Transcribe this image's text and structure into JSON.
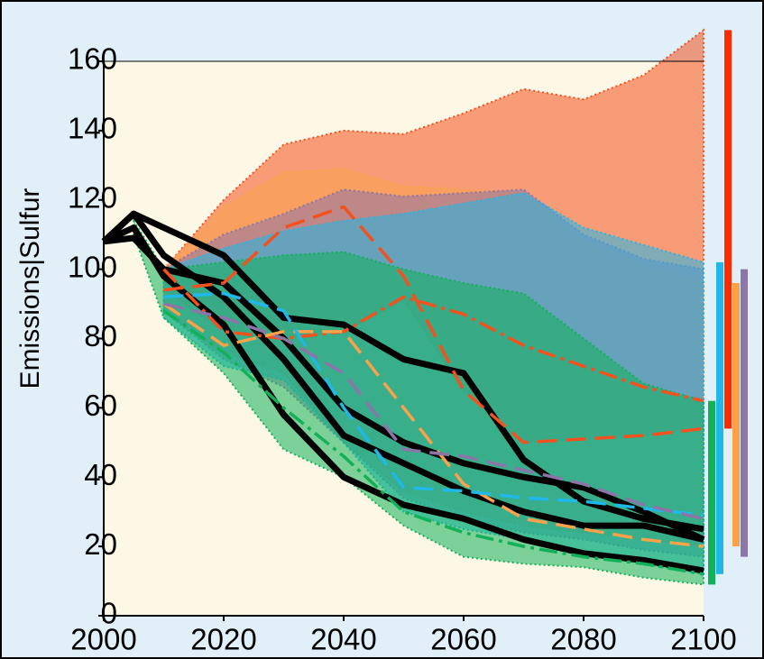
{
  "chart_data": {
    "type": "line",
    "ylabel": "Emissions|Sulfur",
    "x": [
      2000,
      2005,
      2010,
      2020,
      2030,
      2040,
      2050,
      2060,
      2070,
      2080,
      2090,
      2100
    ],
    "xlim": [
      2000,
      2100
    ],
    "xticks": [
      2000,
      2020,
      2040,
      2060,
      2080,
      2100
    ],
    "ylim": [
      0,
      160
    ],
    "yticks": [
      0,
      20,
      40,
      60,
      80,
      100,
      120,
      140,
      160
    ],
    "bands": [
      {
        "color": "#f4511e",
        "upper": [
          null,
          null,
          100,
          120,
          136,
          140,
          139,
          145,
          152,
          149,
          156,
          169
        ],
        "lower": [
          null,
          null,
          94,
          82,
          80,
          82,
          91,
          65,
          50,
          51,
          52,
          54
        ]
      },
      {
        "color": "#f9a24a",
        "upper": [
          null,
          null,
          100,
          118,
          128,
          129,
          124,
          123,
          122,
          108,
          101,
          96
        ],
        "lower": [
          null,
          null,
          88,
          76,
          70,
          50,
          36,
          30,
          26,
          24,
          22,
          20
        ]
      },
      {
        "color": "#8c75a8",
        "upper": [
          null,
          null,
          100,
          110,
          116,
          123,
          121,
          122,
          123,
          110,
          103,
          100
        ],
        "lower": [
          null,
          null,
          88,
          74,
          66,
          50,
          34,
          28,
          24,
          22,
          19,
          17
        ]
      },
      {
        "color": "#1fb8e8",
        "upper": [
          null,
          null,
          100,
          106,
          111,
          114,
          116,
          119,
          122,
          112,
          107,
          102
        ],
        "lower": [
          null,
          null,
          86,
          72,
          68,
          50,
          30,
          25,
          22,
          18,
          15,
          12
        ]
      },
      {
        "color": "#13b05a",
        "upper": [
          null,
          114,
          100,
          102,
          104,
          105,
          100,
          96,
          93,
          80,
          67,
          62
        ],
        "lower": [
          null,
          110,
          86,
          70,
          48,
          40,
          26,
          17,
          15,
          14,
          11,
          9
        ]
      }
    ],
    "series": [
      {
        "color": "#000000",
        "style": "solid",
        "values": [
          108,
          116,
          112,
          104,
          86,
          84,
          74,
          70,
          45,
          33,
          28,
          25
        ]
      },
      {
        "color": "#000000",
        "style": "solid",
        "values": [
          108,
          109,
          100,
          96,
          80,
          60,
          50,
          44,
          40,
          37,
          30,
          22
        ]
      },
      {
        "color": "#000000",
        "style": "solid",
        "values": [
          108,
          116,
          104,
          92,
          74,
          52,
          44,
          36,
          30,
          26,
          26,
          22
        ]
      },
      {
        "color": "#000000",
        "style": "solid",
        "values": [
          108,
          112,
          98,
          84,
          58,
          40,
          32,
          28,
          22,
          18,
          16,
          13
        ]
      },
      {
        "color": "#f4511e",
        "style": "dashed",
        "values": [
          null,
          null,
          94,
          96,
          112,
          118,
          98,
          65,
          50,
          51,
          52,
          54
        ]
      },
      {
        "color": "#f4511e",
        "style": "dashdot",
        "values": [
          null,
          null,
          100,
          82,
          80,
          82,
          92,
          87,
          78,
          72,
          66,
          62
        ]
      },
      {
        "color": "#f9a24a",
        "style": "dashed",
        "values": [
          null,
          null,
          90,
          78,
          82,
          82,
          60,
          38,
          28,
          25,
          22,
          20
        ]
      },
      {
        "color": "#1fb8e8",
        "style": "dashed",
        "values": [
          null,
          null,
          92,
          93,
          88,
          60,
          37,
          36,
          34,
          33,
          31,
          29
        ]
      },
      {
        "color": "#8c75a8",
        "style": "dashed",
        "values": [
          null,
          null,
          90,
          86,
          80,
          70,
          48,
          46,
          42,
          38,
          32,
          28
        ]
      },
      {
        "color": "#13b05a",
        "style": "dashdot",
        "values": [
          null,
          null,
          88,
          76,
          60,
          46,
          30,
          24,
          20,
          17,
          15,
          12
        ]
      }
    ]
  }
}
